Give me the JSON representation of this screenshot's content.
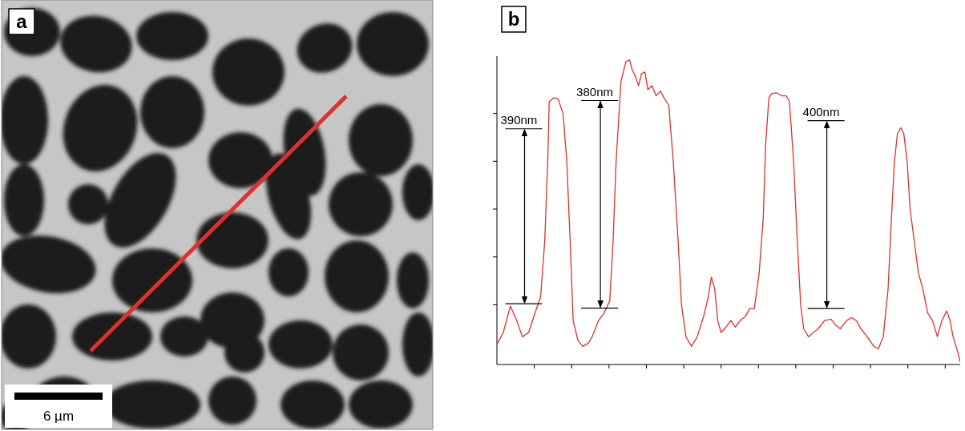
{
  "image_panel": {
    "letter": "a",
    "scale_bar_label": "6 µm"
  },
  "chart_data": {
    "letter": "b",
    "type": "line",
    "color": "#e0302a",
    "x": [
      0,
      0.17,
      0.36,
      0.53,
      0.68,
      0.85,
      1.02,
      1.17,
      1.28,
      1.36,
      1.4,
      1.53,
      1.64,
      1.77,
      1.87,
      1.96,
      2.04,
      2.17,
      2.3,
      2.45,
      2.55,
      2.72,
      2.87,
      3.02,
      3.11,
      3.19,
      3.32,
      3.45,
      3.55,
      3.62,
      3.72,
      3.79,
      3.87,
      3.96,
      4.04,
      4.15,
      4.26,
      4.38,
      4.47,
      4.6,
      4.72,
      4.85,
      4.94,
      5.06,
      5.21,
      5.36,
      5.53,
      5.66,
      5.74,
      5.83,
      5.91,
      6.0,
      6.13,
      6.26,
      6.38,
      6.51,
      6.64,
      6.77,
      6.89,
      7.02,
      7.13,
      7.19,
      7.28,
      7.36,
      7.49,
      7.62,
      7.74,
      7.83,
      7.94,
      8.04,
      8.13,
      8.21,
      8.34,
      8.47,
      8.6,
      8.77,
      8.94,
      9.06,
      9.19,
      9.36,
      9.49,
      9.62,
      9.74,
      9.91,
      10.09,
      10.21,
      10.34,
      10.47,
      10.55,
      10.64,
      10.72,
      10.81,
      10.89,
      10.98,
      11.06,
      11.17,
      11.28,
      11.4,
      11.53,
      11.66,
      11.79,
      11.91,
      12.04,
      12.13,
      12.21,
      12.34,
      12.4
    ],
    "values": [
      0.17,
      0.42,
      0.97,
      0.67,
      0.33,
      0.42,
      0.83,
      1.17,
      2.33,
      4.0,
      5.25,
      5.33,
      5.3,
      5.0,
      4.0,
      2.33,
      0.67,
      0.25,
      0.13,
      0.2,
      0.33,
      0.67,
      0.83,
      1.08,
      2.33,
      4.0,
      5.67,
      6.08,
      6.12,
      5.92,
      5.75,
      5.58,
      5.83,
      5.87,
      5.5,
      5.58,
      5.37,
      5.47,
      5.33,
      5.17,
      4.0,
      2.33,
      1.0,
      0.33,
      0.13,
      0.33,
      0.75,
      1.17,
      1.58,
      1.33,
      0.67,
      0.42,
      0.53,
      0.67,
      0.53,
      0.67,
      0.75,
      0.92,
      0.92,
      1.67,
      2.83,
      4.33,
      5.33,
      5.42,
      5.43,
      5.37,
      5.37,
      5.25,
      4.0,
      2.33,
      1.0,
      0.5,
      0.33,
      0.42,
      0.5,
      0.67,
      0.7,
      0.58,
      0.5,
      0.67,
      0.73,
      0.67,
      0.5,
      0.33,
      0.13,
      0.08,
      0.33,
      1.33,
      2.67,
      4.0,
      4.58,
      4.7,
      4.58,
      4.0,
      3.0,
      2.33,
      1.67,
      1.33,
      0.83,
      0.67,
      0.33,
      0.67,
      0.87,
      0.67,
      0.33,
      0.0,
      -0.2
    ],
    "xlim": [
      0,
      12.4
    ],
    "ylim": [
      -0.25,
      6.2
    ],
    "xticks": [
      1,
      2,
      3,
      4,
      5,
      6,
      7,
      8,
      9,
      10,
      11,
      12
    ],
    "yticks": [
      1,
      2,
      3,
      4,
      5
    ],
    "tick_labels": false,
    "grid": false,
    "annotations": [
      {
        "text": "390nm",
        "x": 0.74,
        "y": [
          1.02,
          4.68
        ]
      },
      {
        "text": "380nm",
        "x": 2.77,
        "y": [
          0.93,
          5.27
        ]
      },
      {
        "text": "400nm",
        "x": 8.83,
        "y": [
          0.92,
          4.85
        ]
      }
    ]
  }
}
